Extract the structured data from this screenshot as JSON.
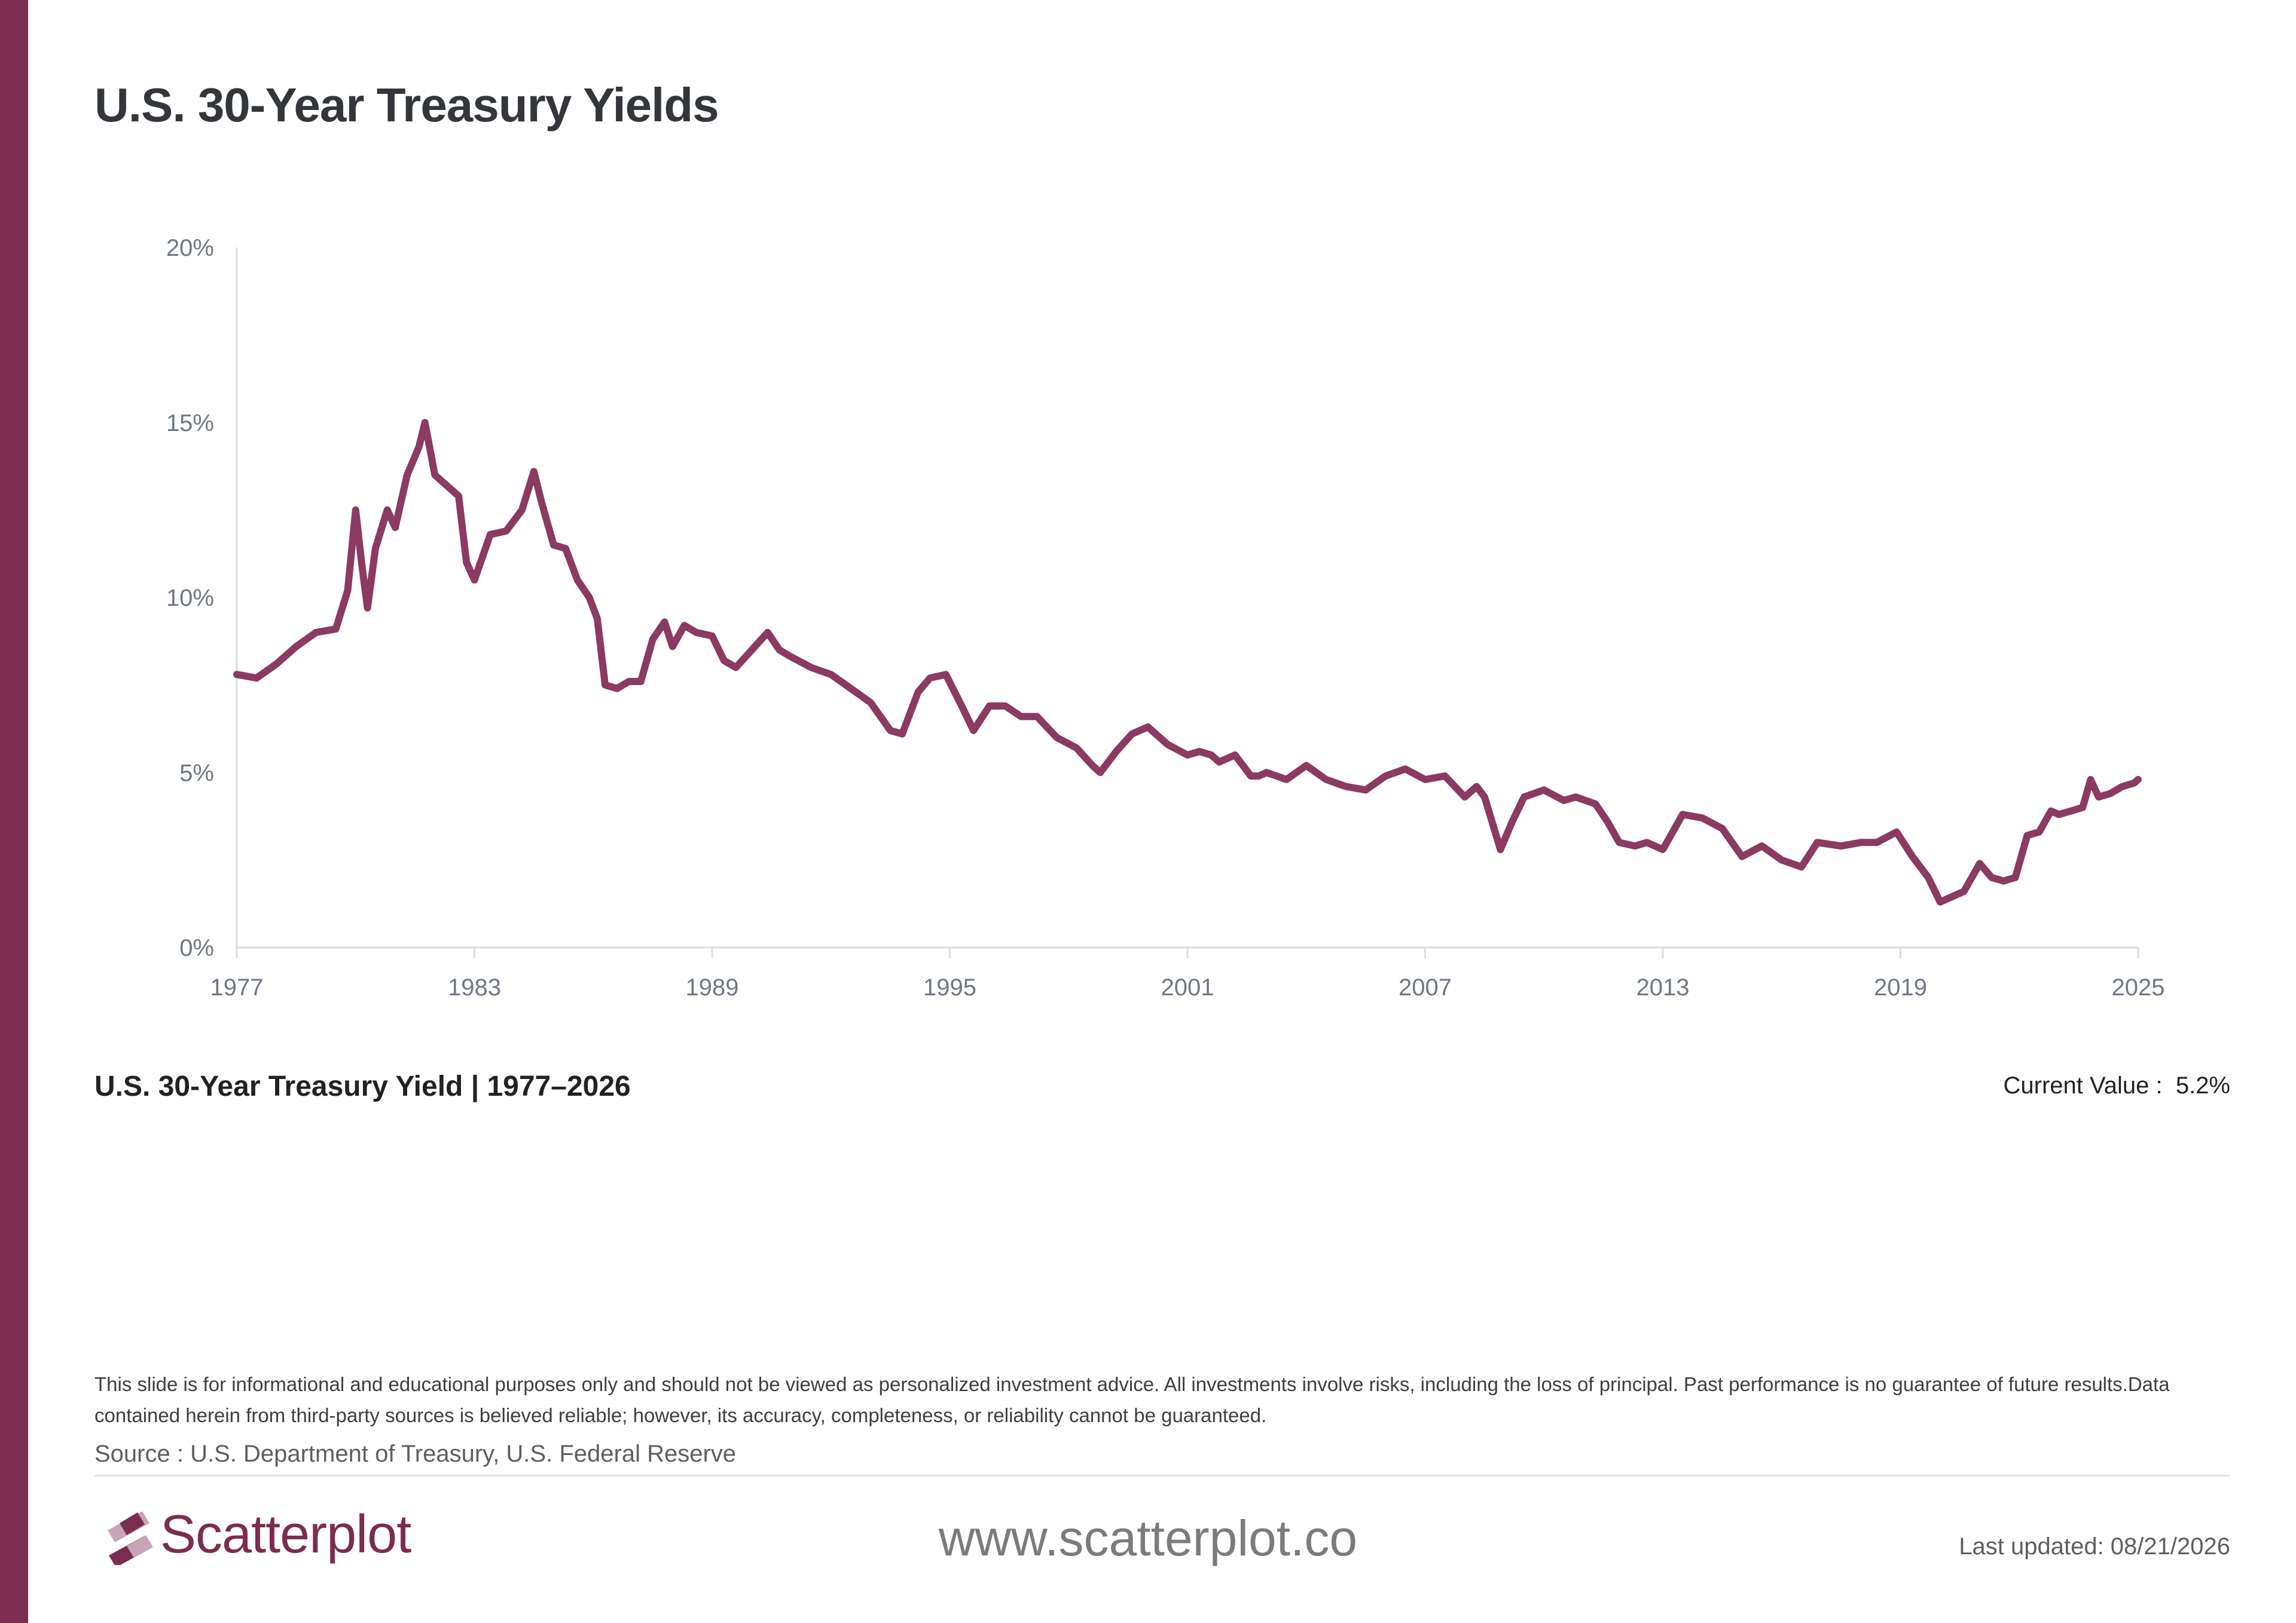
{
  "page": {
    "title": "U.S. 30-Year Treasury Yields",
    "caption": "U.S. 30-Year Treasury Yield | 1977–2026",
    "current_value_label": "Current Value :",
    "current_value": "5.2%",
    "disclaimer": "This slide is for informational and educational purposes only and should not be viewed as personalized investment advice. All investments involve risks, including the loss of principal. Past performance is no guarantee of future results.Data contained herein from third-party sources is believed reliable; however, its accuracy, completeness, or reliability cannot be guaranteed.",
    "source": "Source : U.S. Department of Treasury, U.S. Federal Reserve",
    "brand_name": "Scatterplot",
    "website": "www.scatterplot.co",
    "last_updated": "Last updated: 08/21/2026"
  },
  "colors": {
    "accent": "#7b2d4f",
    "line": "#8b3a62",
    "logo_light": "#c9a3b6"
  },
  "chart_data": {
    "type": "line",
    "title": "",
    "xlabel": "",
    "ylabel": "",
    "xlim": [
      1977,
      2025
    ],
    "ylim": [
      0,
      20
    ],
    "x_ticks": [
      "1977",
      "1983",
      "1989",
      "1995",
      "2001",
      "2007",
      "2013",
      "2019",
      "2025"
    ],
    "y_ticks": [
      "0%",
      "5%",
      "10%",
      "15%",
      "20%"
    ],
    "grid": false,
    "legend": "none",
    "series": [
      {
        "name": "",
        "x": [
          1977.0,
          1977.5,
          1978.0,
          1978.5,
          1979.0,
          1979.5,
          1979.8,
          1980.0,
          1980.15,
          1980.3,
          1980.5,
          1980.8,
          1981.0,
          1981.3,
          1981.6,
          1981.75,
          1982.0,
          1982.3,
          1982.6,
          1982.8,
          1983.0,
          1983.4,
          1983.8,
          1984.2,
          1984.5,
          1984.7,
          1985.0,
          1985.3,
          1985.6,
          1985.9,
          1986.1,
          1986.3,
          1986.6,
          1986.9,
          1987.2,
          1987.5,
          1987.8,
          1988.0,
          1988.3,
          1988.6,
          1989.0,
          1989.3,
          1989.6,
          1990.0,
          1990.4,
          1990.7,
          1991.0,
          1991.5,
          1992.0,
          1992.5,
          1993.0,
          1993.5,
          1993.8,
          1994.2,
          1994.5,
          1994.9,
          1995.3,
          1995.6,
          1996.0,
          1996.4,
          1996.8,
          1997.2,
          1997.7,
          1998.2,
          1998.6,
          1998.8,
          1999.2,
          1999.6,
          2000.0,
          2000.5,
          2001.0,
          2001.3,
          2001.6,
          2001.8,
          2002.2,
          2002.6,
          2002.8,
          2003.0,
          2003.5,
          2004.0,
          2004.5,
          2005.0,
          2005.5,
          2006.0,
          2006.5,
          2007.0,
          2007.5,
          2008.0,
          2008.3,
          2008.5,
          2008.9,
          2009.2,
          2009.5,
          2010.0,
          2010.5,
          2010.8,
          2011.3,
          2011.6,
          2011.9,
          2012.3,
          2012.6,
          2013.0,
          2013.5,
          2014.0,
          2014.5,
          2015.0,
          2015.5,
          2016.0,
          2016.5,
          2016.9,
          2017.5,
          2018.0,
          2018.4,
          2018.9,
          2019.3,
          2019.7,
          2020.0,
          2020.2,
          2020.6,
          2021.0,
          2021.3,
          2021.6,
          2021.9,
          2022.2,
          2022.5,
          2022.8,
          2023.0,
          2023.3,
          2023.6,
          2023.8,
          2024.0,
          2024.3,
          2024.6,
          2024.9,
          2025.0
        ],
        "y": [
          7.8,
          7.7,
          8.1,
          8.6,
          9.0,
          9.1,
          10.2,
          12.5,
          11.0,
          9.7,
          11.4,
          12.5,
          12.0,
          13.5,
          14.3,
          15.0,
          13.5,
          13.2,
          12.9,
          11.0,
          10.5,
          11.8,
          11.9,
          12.5,
          13.6,
          12.7,
          11.5,
          11.4,
          10.5,
          10.0,
          9.4,
          7.5,
          7.4,
          7.6,
          7.6,
          8.8,
          9.3,
          8.6,
          9.2,
          9.0,
          8.9,
          8.2,
          8.0,
          8.5,
          9.0,
          8.5,
          8.3,
          8.0,
          7.8,
          7.4,
          7.0,
          6.2,
          6.1,
          7.3,
          7.7,
          7.8,
          6.9,
          6.2,
          6.9,
          6.9,
          6.6,
          6.6,
          6.0,
          5.7,
          5.2,
          5.0,
          5.6,
          6.1,
          6.3,
          5.8,
          5.5,
          5.6,
          5.5,
          5.3,
          5.5,
          4.9,
          4.9,
          5.0,
          4.8,
          5.2,
          4.8,
          4.6,
          4.5,
          4.9,
          5.1,
          4.8,
          4.9,
          4.3,
          4.6,
          4.3,
          2.8,
          3.6,
          4.3,
          4.5,
          4.2,
          4.3,
          4.1,
          3.6,
          3.0,
          2.9,
          3.0,
          2.8,
          3.8,
          3.7,
          3.4,
          2.6,
          2.9,
          2.5,
          2.3,
          3.0,
          2.9,
          3.0,
          3.0,
          3.3,
          2.6,
          2.0,
          1.3,
          1.4,
          1.6,
          2.4,
          2.0,
          1.9,
          2.0,
          3.2,
          3.3,
          3.9,
          3.8,
          3.9,
          4.0,
          4.8,
          4.3,
          4.4,
          4.6,
          4.7,
          4.8
        ]
      }
    ]
  }
}
